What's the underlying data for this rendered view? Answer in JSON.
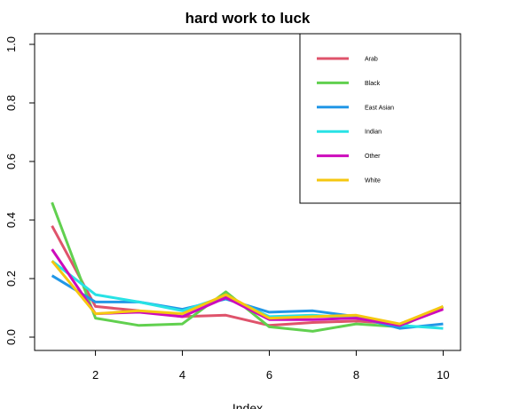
{
  "chart_data": {
    "type": "line",
    "title": "hard work to luck",
    "xlabel": "Index",
    "ylabel": "",
    "xlim": [
      0.6,
      10.4
    ],
    "ylim": [
      0,
      1.0
    ],
    "x_ticks": [
      2,
      4,
      6,
      8,
      10
    ],
    "y_ticks": [
      0.0,
      0.2,
      0.4,
      0.6,
      0.8,
      1.0
    ],
    "x_tick_labels": [
      "2",
      "4",
      "6",
      "8",
      "10"
    ],
    "y_tick_labels": [
      "0.0",
      "0.2",
      "0.4",
      "0.6",
      "0.8",
      "1.0"
    ],
    "grid": false,
    "legend_position": "top-right",
    "x": [
      1,
      2,
      3,
      4,
      5,
      6,
      7,
      8,
      9,
      10
    ],
    "series": [
      {
        "name": "Arab",
        "color": "#df536b",
        "values": [
          0.38,
          0.105,
          0.09,
          0.07,
          0.075,
          0.04,
          0.05,
          0.055,
          0.045,
          0.1
        ]
      },
      {
        "name": "Black",
        "color": "#61d04f",
        "values": [
          0.46,
          0.065,
          0.04,
          0.045,
          0.155,
          0.035,
          0.02,
          0.045,
          0.035,
          0.105
        ]
      },
      {
        "name": "East Asian",
        "color": "#2297e6",
        "values": [
          0.21,
          0.12,
          0.12,
          0.095,
          0.13,
          0.085,
          0.09,
          0.07,
          0.03,
          0.045
        ]
      },
      {
        "name": "Indian",
        "color": "#28e2e5",
        "values": [
          0.26,
          0.145,
          0.12,
          0.09,
          0.14,
          0.07,
          0.075,
          0.065,
          0.04,
          0.03
        ]
      },
      {
        "name": "Other",
        "color": "#cd0bbc",
        "values": [
          0.3,
          0.08,
          0.085,
          0.07,
          0.135,
          0.06,
          0.06,
          0.065,
          0.04,
          0.095
        ]
      },
      {
        "name": "White",
        "color": "#f5c710",
        "values": [
          0.26,
          0.08,
          0.09,
          0.08,
          0.145,
          0.065,
          0.07,
          0.075,
          0.045,
          0.105
        ]
      }
    ]
  }
}
